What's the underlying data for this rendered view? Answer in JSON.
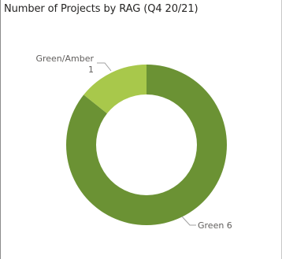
{
  "chart_data": {
    "type": "pie",
    "variant": "donut",
    "title": "Number of Projects by RAG (Q4 20/21)",
    "categories": [
      "Green",
      "Green/Amber"
    ],
    "values": [
      6,
      1
    ],
    "colors": [
      "#6b9234",
      "#a8c84b"
    ],
    "data_labels": [
      {
        "category": "Green",
        "text": "Green 6"
      },
      {
        "category": "Green/Amber",
        "text": "Green/Amber",
        "value_text": "1"
      }
    ],
    "legend": "none"
  }
}
